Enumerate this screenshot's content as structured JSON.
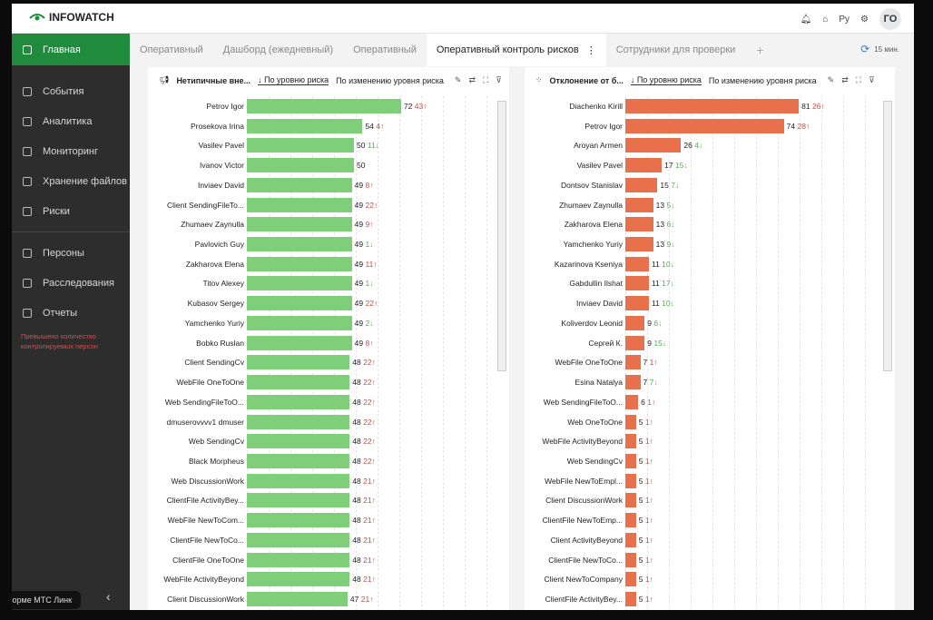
{
  "header": {
    "brand": "INFOWATCH",
    "icons": [
      "bell-icon",
      "gift-icon",
      "language-icon",
      "settings-icon"
    ],
    "lang": "Ру",
    "avatar": "ГО"
  },
  "sidebar": {
    "items": [
      {
        "label": "Главная",
        "active": true
      },
      {
        "label": "События"
      },
      {
        "label": "Аналитика"
      },
      {
        "label": "Мониторинг"
      },
      {
        "label": "Хранение файлов"
      },
      {
        "label": "Риски"
      },
      {
        "label": "Персоны"
      },
      {
        "label": "Расследования"
      },
      {
        "label": "Отчеты"
      }
    ],
    "warning": "Превышено количество контролируемых персон",
    "toast": "тформе МТС Линк"
  },
  "tabs": [
    {
      "label": "Оперативный"
    },
    {
      "label": "Дашборд (ежедневный)"
    },
    {
      "label": "Оперативный"
    },
    {
      "label": "Оперативный контроль рисков",
      "active": true
    },
    {
      "label": "Сотрудники для проверки"
    }
  ],
  "refresh": "15 мин.",
  "colors": {
    "brand": "#1f8b3c",
    "left_bar": "#7fcf7a",
    "right_bar": "#e8704a",
    "up": "#c0504d",
    "down": "#5aaa5a"
  },
  "chart_data": [
    {
      "type": "bar",
      "title": "Нетипичные вне...",
      "sort_active": "↓ По уровню риска",
      "sort_alt": "По изменению уровня риска",
      "color": "#7fcf7a",
      "categories": [
        "Petrov Igor",
        "Prosekova Irina",
        "Vasilev Pavel",
        "Ivanov Victor",
        "Inviaev David",
        "Client SendingFileTo...",
        "Zhumaev Zaynulla",
        "Pavlovich Guy",
        "Zakharova Elena",
        "Titov Alexey",
        "Kubasov Sergey",
        "Yamchenko Yuriy",
        "Bobko Ruslan",
        "Client SendingCv",
        "WebFile OneToOne",
        "Web SendingFileToO...",
        "dmuserovvvv1 dmuser",
        "Web SendingCv",
        "Black Morpheus",
        "Web DiscussionWork",
        "ClientFile ActivityBey...",
        "WebFile NewToCom...",
        "ClientFile NewToCo...",
        "ClientFile OneToOne",
        "WebFile ActivityBeyond",
        "Client DiscussionWork"
      ],
      "values": [
        72,
        54,
        50,
        50,
        49,
        49,
        49,
        49,
        49,
        49,
        49,
        49,
        49,
        48,
        48,
        48,
        48,
        48,
        48,
        48,
        48,
        48,
        48,
        48,
        48,
        47
      ],
      "changes": [
        43,
        4,
        -11,
        null,
        8,
        22,
        9,
        -1,
        11,
        -1,
        22,
        -2,
        8,
        22,
        22,
        22,
        22,
        22,
        22,
        21,
        21,
        21,
        21,
        21,
        21,
        21
      ]
    },
    {
      "type": "bar",
      "title": "Отклонение от б...",
      "sort_active": "↓ По уровню риска",
      "sort_alt": "По изменению уровня риска",
      "color": "#e8704a",
      "categories": [
        "Diachenko Kirill",
        "Petrov Igor",
        "Aroyan Armen",
        "Vasilev Pavel",
        "Dontsov Stanislav",
        "Zhumaev Zaynulla",
        "Zakharova Elena",
        "Yamchenko Yuriy",
        "Kazarinova Kseniya",
        "Gabdullin Ilshat",
        "Inviaev David",
        "Koliverdov Leonid",
        "Сергей К.",
        "WebFile OneToOne",
        "Esina Natalya",
        "Web SendingFileToO...",
        "Web OneToOne",
        "WebFile ActivityBeyond",
        "Web SendingCv",
        "WebFile NewToEmpl...",
        "Client DiscussionWork",
        "ClientFile NewToEmp...",
        "Client ActivityBeyond",
        "ClientFile NewToCo...",
        "Client NewToCompany",
        "ClientFile ActivityBey..."
      ],
      "values": [
        81,
        74,
        26,
        17,
        15,
        13,
        13,
        13,
        11,
        11,
        11,
        9,
        9,
        7,
        7,
        6,
        5,
        5,
        5,
        5,
        5,
        5,
        5,
        5,
        5,
        5
      ],
      "changes": [
        26,
        28,
        -4,
        -15,
        -7,
        -5,
        -6,
        -9,
        -10,
        -17,
        -10,
        -6,
        -15,
        1,
        -7,
        1,
        1,
        1,
        1,
        1,
        1,
        1,
        1,
        1,
        1,
        1
      ]
    }
  ]
}
